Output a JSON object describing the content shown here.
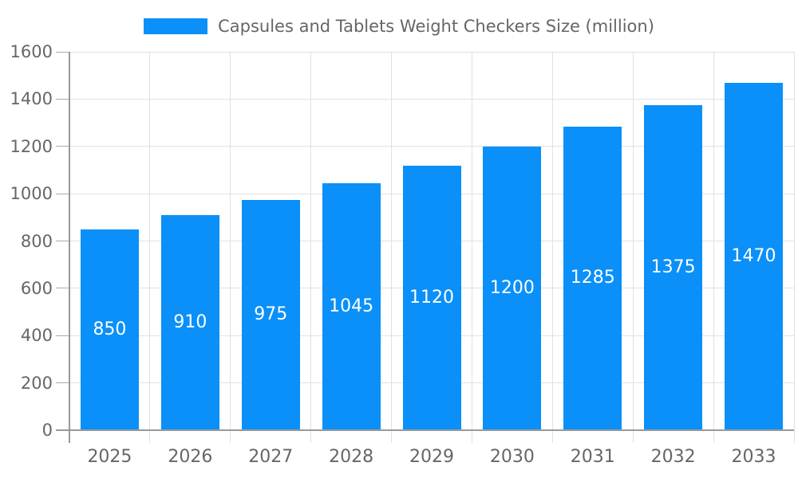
{
  "legend": {
    "label": "Capsules and Tablets Weight Checkers Size (million)"
  },
  "chart_data": {
    "type": "bar",
    "title": "Capsules and Tablets Weight Checkers Size (million)",
    "categories": [
      "2025",
      "2026",
      "2027",
      "2028",
      "2029",
      "2030",
      "2031",
      "2032",
      "2033"
    ],
    "values": [
      850,
      910,
      975,
      1045,
      1120,
      1200,
      1285,
      1375,
      1470
    ],
    "xlabel": "",
    "ylabel": "",
    "ylim": [
      0,
      1600
    ],
    "ytick_step": 200,
    "grid": true,
    "legend_position": "top",
    "value_labels": "centered-inside-white"
  },
  "colors": {
    "bar": "#0a90f8",
    "axis_text": "#666666",
    "title_text": "#666666",
    "value_text": "#ffffff",
    "gridline": "#e1e1e1",
    "axis_line": "#999999",
    "tick": "#aaaaaa",
    "background": "#ffffff"
  }
}
